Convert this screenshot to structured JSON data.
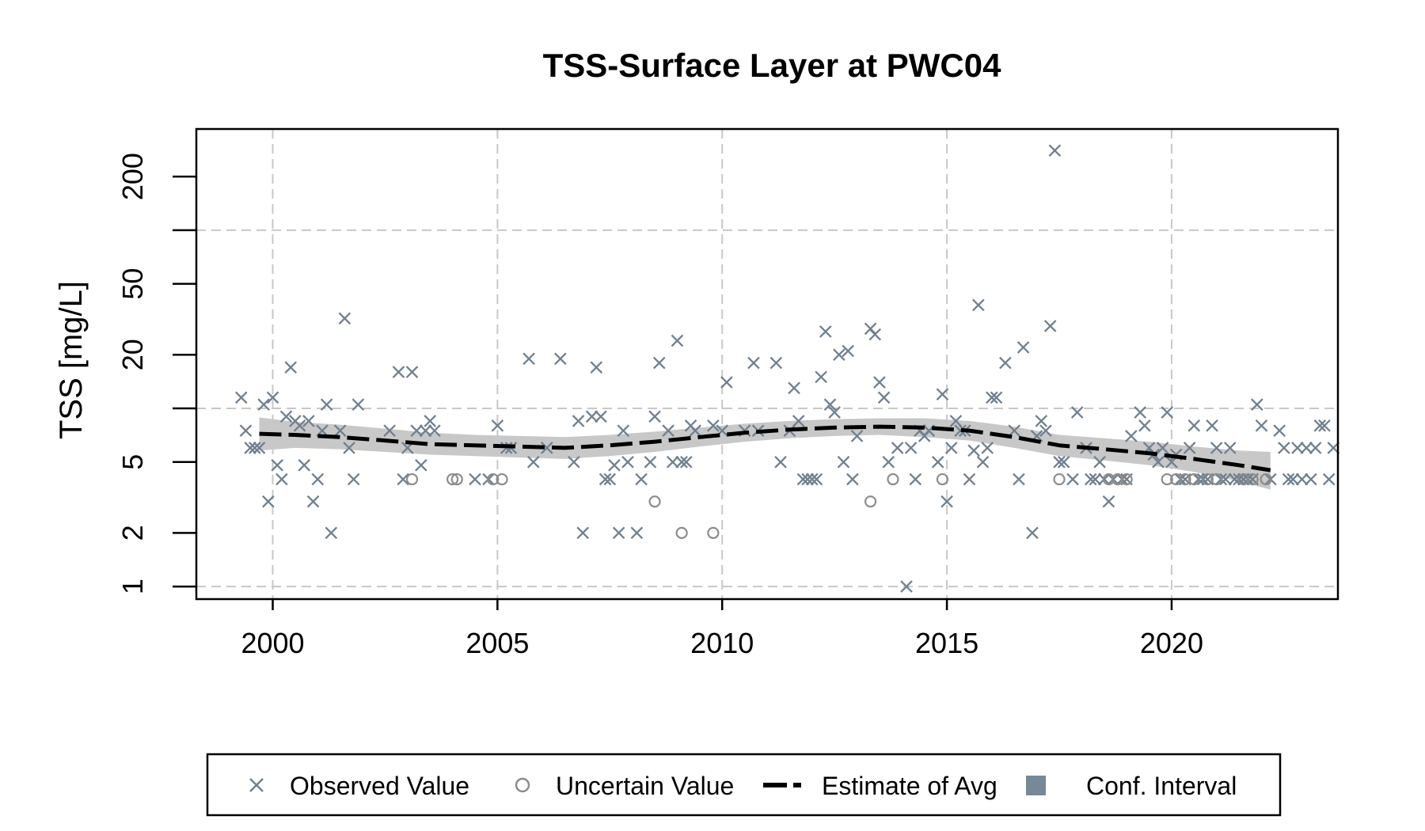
{
  "chart_data": {
    "type": "scatter",
    "title": "TSS-Surface Layer at PWC04",
    "xlabel": "",
    "ylabel": "TSS [mg/L]",
    "xlim": [
      1998.3,
      2023.7
    ],
    "ylim": [
      0.85,
      370
    ],
    "y_scale": "log",
    "x_ticks": [
      2000,
      2005,
      2010,
      2015,
      2020
    ],
    "y_ticks": [
      1,
      2,
      5,
      20,
      50,
      200
    ],
    "x_grid": [
      2000,
      2005,
      2010,
      2015,
      2020
    ],
    "y_grid": [
      1,
      10,
      100
    ],
    "grid": true,
    "legend_position": "bottom",
    "colors": {
      "observed": "#708090",
      "uncertain": "#8c8c8c",
      "estimate": "#000000",
      "ci_band": "#c8c8c8",
      "ci_legend": "#778899",
      "grid": "#c8c8c8"
    },
    "legend": [
      {
        "label": "Observed Value",
        "symbol": "x"
      },
      {
        "label": "Uncertain Value",
        "symbol": "circle"
      },
      {
        "label": "Estimate of Avg",
        "symbol": "dash-line"
      },
      {
        "label": "Conf. Interval",
        "symbol": "square"
      }
    ],
    "series": [
      {
        "name": "Observed Value",
        "points": [
          [
            1999.3,
            11.5
          ],
          [
            1999.4,
            7.5
          ],
          [
            1999.5,
            6.0
          ],
          [
            1999.6,
            6.0
          ],
          [
            1999.7,
            6.0
          ],
          [
            1999.8,
            10.5
          ],
          [
            1999.9,
            3.0
          ],
          [
            2000.0,
            11.5
          ],
          [
            2000.1,
            4.8
          ],
          [
            2000.2,
            4.0
          ],
          [
            2000.3,
            9.0
          ],
          [
            2000.4,
            17.0
          ],
          [
            2000.5,
            8.5
          ],
          [
            2000.6,
            8.0
          ],
          [
            2000.7,
            4.8
          ],
          [
            2000.8,
            8.5
          ],
          [
            2000.9,
            3.0
          ],
          [
            2001.0,
            4.0
          ],
          [
            2001.1,
            7.5
          ],
          [
            2001.2,
            10.5
          ],
          [
            2001.3,
            2.0
          ],
          [
            2001.5,
            7.5
          ],
          [
            2001.6,
            32.0
          ],
          [
            2001.7,
            6.0
          ],
          [
            2001.8,
            4.0
          ],
          [
            2001.9,
            10.5
          ],
          [
            2002.6,
            7.5
          ],
          [
            2002.8,
            16.0
          ],
          [
            2002.9,
            4.0
          ],
          [
            2003.0,
            6.0
          ],
          [
            2003.1,
            16.0
          ],
          [
            2003.2,
            7.5
          ],
          [
            2003.3,
            4.8
          ],
          [
            2003.4,
            7.5
          ],
          [
            2003.5,
            8.5
          ],
          [
            2003.6,
            7.5
          ],
          [
            2004.5,
            4.0
          ],
          [
            2004.8,
            4.0
          ],
          [
            2005.0,
            8.0
          ],
          [
            2005.2,
            6.0
          ],
          [
            2005.3,
            6.0
          ],
          [
            2005.7,
            19.0
          ],
          [
            2005.8,
            5.0
          ],
          [
            2006.1,
            6.0
          ],
          [
            2006.4,
            19.0
          ],
          [
            2006.7,
            5.0
          ],
          [
            2006.8,
            8.5
          ],
          [
            2006.9,
            2.0
          ],
          [
            2007.1,
            9.0
          ],
          [
            2007.2,
            17.0
          ],
          [
            2007.3,
            9.0
          ],
          [
            2007.4,
            4.0
          ],
          [
            2007.5,
            4.0
          ],
          [
            2007.6,
            4.8
          ],
          [
            2007.7,
            2.0
          ],
          [
            2007.8,
            7.5
          ],
          [
            2007.9,
            5.0
          ],
          [
            2008.1,
            2.0
          ],
          [
            2008.2,
            4.0
          ],
          [
            2008.4,
            5.0
          ],
          [
            2008.5,
            9.0
          ],
          [
            2008.6,
            18.0
          ],
          [
            2008.8,
            7.5
          ],
          [
            2008.9,
            5.0
          ],
          [
            2009.0,
            24.0
          ],
          [
            2009.1,
            5.0
          ],
          [
            2009.2,
            5.0
          ],
          [
            2009.3,
            8.0
          ],
          [
            2009.4,
            7.5
          ],
          [
            2009.8,
            8.0
          ],
          [
            2010.0,
            7.5
          ],
          [
            2010.1,
            14.0
          ],
          [
            2010.5,
            7.5
          ],
          [
            2010.7,
            18.0
          ],
          [
            2010.8,
            7.5
          ],
          [
            2011.2,
            18.0
          ],
          [
            2011.3,
            5.0
          ],
          [
            2011.5,
            7.5
          ],
          [
            2011.6,
            13.0
          ],
          [
            2011.7,
            8.5
          ],
          [
            2011.8,
            4.0
          ],
          [
            2011.9,
            4.0
          ],
          [
            2012.0,
            4.0
          ],
          [
            2012.1,
            4.0
          ],
          [
            2012.2,
            15.0
          ],
          [
            2012.3,
            27.0
          ],
          [
            2012.4,
            10.5
          ],
          [
            2012.5,
            9.5
          ],
          [
            2012.6,
            20.0
          ],
          [
            2012.7,
            5.0
          ],
          [
            2012.8,
            21.0
          ],
          [
            2012.9,
            4.0
          ],
          [
            2013.0,
            7.0
          ],
          [
            2013.3,
            28.0
          ],
          [
            2013.4,
            26.0
          ],
          [
            2013.5,
            14.0
          ],
          [
            2013.6,
            11.5
          ],
          [
            2013.7,
            5.0
          ],
          [
            2013.9,
            6.0
          ],
          [
            2014.1,
            1.0
          ],
          [
            2014.2,
            6.0
          ],
          [
            2014.3,
            4.0
          ],
          [
            2014.4,
            7.5
          ],
          [
            2014.5,
            7.0
          ],
          [
            2014.6,
            7.5
          ],
          [
            2014.8,
            5.0
          ],
          [
            2014.9,
            12.0
          ],
          [
            2015.0,
            3.0
          ],
          [
            2015.1,
            6.0
          ],
          [
            2015.2,
            8.5
          ],
          [
            2015.3,
            7.5
          ],
          [
            2015.4,
            7.5
          ],
          [
            2015.5,
            4.0
          ],
          [
            2015.6,
            5.8
          ],
          [
            2015.7,
            38.0
          ],
          [
            2015.8,
            5.0
          ],
          [
            2015.9,
            6.0
          ],
          [
            2016.0,
            11.5
          ],
          [
            2016.1,
            11.5
          ],
          [
            2016.3,
            18.0
          ],
          [
            2016.5,
            7.5
          ],
          [
            2016.6,
            4.0
          ],
          [
            2016.7,
            22.0
          ],
          [
            2016.9,
            2.0
          ],
          [
            2017.0,
            7.0
          ],
          [
            2017.1,
            8.5
          ],
          [
            2017.2,
            7.5
          ],
          [
            2017.3,
            29.0
          ],
          [
            2017.4,
            280.0
          ],
          [
            2017.5,
            5.0
          ],
          [
            2017.6,
            5.0
          ],
          [
            2017.8,
            4.0
          ],
          [
            2017.9,
            9.5
          ],
          [
            2018.1,
            6.0
          ],
          [
            2018.2,
            4.0
          ],
          [
            2018.3,
            4.0
          ],
          [
            2018.4,
            5.0
          ],
          [
            2018.5,
            4.0
          ],
          [
            2018.6,
            3.0
          ],
          [
            2018.7,
            4.0
          ],
          [
            2018.9,
            4.0
          ],
          [
            2019.0,
            4.0
          ],
          [
            2019.1,
            7.0
          ],
          [
            2019.3,
            9.5
          ],
          [
            2019.4,
            8.0
          ],
          [
            2019.5,
            6.0
          ],
          [
            2019.6,
            5.5
          ],
          [
            2019.7,
            5.0
          ],
          [
            2019.8,
            6.0
          ],
          [
            2019.9,
            9.5
          ],
          [
            2020.0,
            5.0
          ],
          [
            2020.1,
            5.5
          ],
          [
            2020.2,
            4.0
          ],
          [
            2020.3,
            4.0
          ],
          [
            2020.4,
            6.0
          ],
          [
            2020.5,
            8.0
          ],
          [
            2020.6,
            4.0
          ],
          [
            2020.7,
            4.0
          ],
          [
            2020.8,
            4.0
          ],
          [
            2020.9,
            8.0
          ],
          [
            2021.0,
            6.0
          ],
          [
            2021.1,
            4.0
          ],
          [
            2021.2,
            4.0
          ],
          [
            2021.3,
            6.0
          ],
          [
            2021.4,
            4.0
          ],
          [
            2021.5,
            4.0
          ],
          [
            2021.6,
            4.0
          ],
          [
            2021.7,
            4.0
          ],
          [
            2021.8,
            4.0
          ],
          [
            2021.9,
            10.5
          ],
          [
            2022.0,
            8.0
          ],
          [
            2022.2,
            4.0
          ],
          [
            2022.4,
            7.5
          ],
          [
            2022.5,
            6.0
          ],
          [
            2022.6,
            4.0
          ],
          [
            2022.7,
            4.0
          ],
          [
            2022.8,
            6.0
          ],
          [
            2022.9,
            4.0
          ],
          [
            2023.0,
            6.0
          ],
          [
            2023.1,
            4.0
          ],
          [
            2023.2,
            6.0
          ],
          [
            2023.3,
            8.0
          ],
          [
            2023.4,
            8.0
          ],
          [
            2023.5,
            4.0
          ],
          [
            2023.6,
            6.0
          ]
        ]
      },
      {
        "name": "Uncertain Value",
        "points": [
          [
            2003.1,
            4.0
          ],
          [
            2004.0,
            4.0
          ],
          [
            2004.1,
            4.0
          ],
          [
            2004.9,
            4.0
          ],
          [
            2005.1,
            4.0
          ],
          [
            2008.5,
            3.0
          ],
          [
            2009.1,
            2.0
          ],
          [
            2009.8,
            2.0
          ],
          [
            2013.3,
            3.0
          ],
          [
            2013.8,
            4.0
          ],
          [
            2014.9,
            4.0
          ],
          [
            2017.5,
            4.0
          ],
          [
            2018.6,
            4.0
          ],
          [
            2018.8,
            4.0
          ],
          [
            2019.0,
            4.0
          ],
          [
            2019.9,
            4.0
          ],
          [
            2020.1,
            4.0
          ],
          [
            2020.3,
            4.0
          ],
          [
            2020.5,
            4.0
          ],
          [
            2020.8,
            4.0
          ],
          [
            2021.0,
            4.0
          ],
          [
            2021.6,
            4.0
          ],
          [
            2021.8,
            4.0
          ],
          [
            2022.1,
            4.0
          ]
        ]
      },
      {
        "name": "Estimate of Avg",
        "x": [
          1999.7,
          2000.5,
          2001.5,
          2002.5,
          2003.5,
          2004.5,
          2005.5,
          2006.5,
          2007.5,
          2008.5,
          2009.5,
          2010.5,
          2011.5,
          2012.5,
          2013.5,
          2014.5,
          2015.5,
          2016.5,
          2017.5,
          2018.5,
          2019.5,
          2020.5,
          2021.5,
          2022.2
        ],
        "values": [
          7.2,
          7.1,
          6.9,
          6.6,
          6.3,
          6.2,
          6.1,
          6.0,
          6.2,
          6.5,
          6.9,
          7.3,
          7.6,
          7.8,
          7.9,
          7.8,
          7.5,
          6.9,
          6.2,
          5.9,
          5.6,
          5.2,
          4.8,
          4.5
        ],
        "ci_lower": [
          5.8,
          6.0,
          5.9,
          5.7,
          5.5,
          5.4,
          5.3,
          5.2,
          5.4,
          5.7,
          6.1,
          6.5,
          6.8,
          7.0,
          7.1,
          6.9,
          6.6,
          6.0,
          5.4,
          5.1,
          4.8,
          4.4,
          3.9,
          3.5
        ],
        "ci_upper": [
          8.9,
          8.4,
          8.1,
          7.7,
          7.3,
          7.1,
          7.0,
          6.9,
          7.1,
          7.4,
          7.8,
          8.2,
          8.5,
          8.7,
          8.8,
          8.8,
          8.5,
          7.9,
          7.1,
          6.8,
          6.5,
          6.1,
          5.8,
          5.7
        ]
      }
    ]
  }
}
